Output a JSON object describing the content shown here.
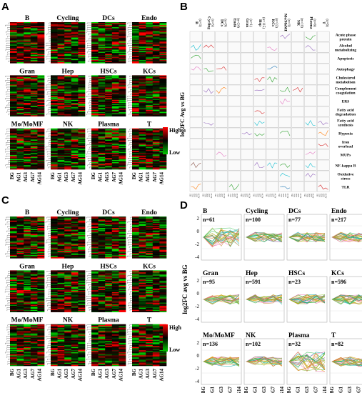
{
  "panels": {
    "A": {
      "label": "A"
    },
    "B": {
      "label": "B"
    },
    "C": {
      "label": "C"
    },
    "D": {
      "label": "D"
    }
  },
  "cell_types": [
    "B",
    "Cycling",
    "DCs",
    "Endo",
    "Gran",
    "Hep",
    "HSCs",
    "KCs",
    "Mo/MoMF",
    "NK",
    "Plasma",
    "T"
  ],
  "x_ticks": [
    "BG",
    "AG1",
    "AG3",
    "AG7",
    "AG14"
  ],
  "legend": {
    "high": "High",
    "low": "Low",
    "high_color": "#ff0000",
    "low_color": "#00cc00",
    "mid_color": "#000000"
  },
  "panel_b": {
    "columns": [
      {
        "name": "B",
        "n": "(n=3)"
      },
      {
        "name": "Cycling",
        "n": "(n=5)"
      },
      {
        "name": "DCs",
        "n": "(n=9)"
      },
      {
        "name": "Endo",
        "n": "(n=24)"
      },
      {
        "name": "Gran",
        "n": "(n=1)"
      },
      {
        "name": "Hep",
        "n": "(n=115)"
      },
      {
        "name": "KCs",
        "n": "(n=22)"
      },
      {
        "name": "Mo/MoMF",
        "n": "(n=3)"
      },
      {
        "name": "NK",
        "n": "(n=10)"
      },
      {
        "name": "Plasma",
        "n": "(n=6)"
      },
      {
        "name": "T",
        "n": "(n=6)"
      }
    ],
    "pathways": [
      "Acute phase protein",
      "Alcohol metabolizing",
      "Apoptosis",
      "Autophagy",
      "Cholesterol metabolism",
      "Complement coagulation",
      "ERS",
      "Fatty acid degradation",
      "Fatty acid synthesis",
      "Hypoxia",
      "Iron overload",
      "MUPs",
      "NF-kappa B",
      "Oxidative stress",
      "TLR"
    ],
    "ylabel": "log2FC Avg vs BG"
  },
  "panel_d": {
    "ylabel": "log2FC avg vs BG",
    "yticks": [
      "2",
      "0",
      "-2",
      "-4"
    ],
    "panels": [
      {
        "name": "B",
        "n": "n=61"
      },
      {
        "name": "Cycling",
        "n": "n=100"
      },
      {
        "name": "DCs",
        "n": "n=77"
      },
      {
        "name": "Endo",
        "n": "n=217"
      },
      {
        "name": "Gran",
        "n": "n=95"
      },
      {
        "name": "Hep",
        "n": "n=591"
      },
      {
        "name": "HSCs",
        "n": "n=23"
      },
      {
        "name": "KCs",
        "n": "n=596"
      },
      {
        "name": "Mo/MoMF",
        "n": "n=136"
      },
      {
        "name": "NK",
        "n": "n=102"
      },
      {
        "name": "Plasma",
        "n": "n=32"
      },
      {
        "name": "T",
        "n": "n=82"
      }
    ],
    "line_colors": [
      "#00a8a8",
      "#2db84a",
      "#e0a000",
      "#f06ab0",
      "#8fbc3a",
      "#c97a2a"
    ]
  }
}
